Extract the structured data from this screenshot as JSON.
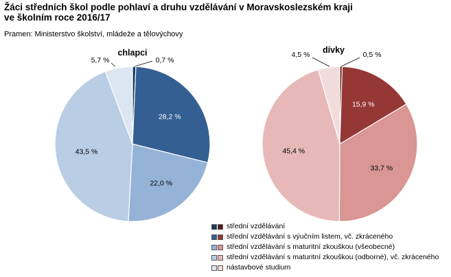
{
  "header": {
    "title_line1": "Žáci středních  škol podle pohlaví a druhu vzdělávání  v Moravskoslezském  kraji",
    "title_line2": "ve školním roce 2016/17",
    "source": "Pramen: Ministerstvo školství, mládeže a tělovýchovy"
  },
  "chart_data": [
    {
      "type": "pie",
      "title": "chlapci",
      "slices": [
        {
          "category": "střední vzdělávání",
          "value": 0.7,
          "label": "0,7 %",
          "color": "#1c3a5e"
        },
        {
          "category": "střední vzdělávání s výučním listem, vč. zkráceného",
          "value": 28.2,
          "label": "28,2 %",
          "color": "#345f93"
        },
        {
          "category": "střední vzdělávání s maturitní zkouškou (všeobecné)",
          "value": 22.0,
          "label": "22,0 %",
          "color": "#95b3d7"
        },
        {
          "category": "střední vzdělávání s maturitní zkouškou (odborné), vč. zkráceného",
          "value": 43.5,
          "label": "43,5 %",
          "color": "#b9cde5"
        },
        {
          "category": "nástavbové studium",
          "value": 5.7,
          "label": "5,7 %",
          "color": "#dce6f2"
        }
      ]
    },
    {
      "type": "pie",
      "title": "dívky",
      "slices": [
        {
          "category": "střední vzdělávání",
          "value": 0.5,
          "label": "0,5 %",
          "color": "#5a1a1a"
        },
        {
          "category": "střední vzdělávání s výučním listem, vč. zkráceného",
          "value": 15.9,
          "label": "15,9 %",
          "color": "#953735"
        },
        {
          "category": "střední vzdělávání s maturitní zkouškou (všeobecné)",
          "value": 33.7,
          "label": "33,7 %",
          "color": "#d99694"
        },
        {
          "category": "střední vzdělávání s maturitní zkouškou (odborné), vč. zkráceného",
          "value": 45.4,
          "label": "45,4 %",
          "color": "#e6b9b8"
        },
        {
          "category": "nástavbové studium",
          "value": 4.5,
          "label": "4,5 %",
          "color": "#f2dcdb"
        }
      ]
    }
  ],
  "legend": {
    "items": [
      {
        "label": "střední vzdělávání",
        "color_a": "#1c3a5e",
        "color_b": "#5a1a1a"
      },
      {
        "label": "střední vzdělávání s výučním listem, vč. zkráceného",
        "color_a": "#345f93",
        "color_b": "#953735"
      },
      {
        "label": "střední vzdělávání s maturitní zkouškou (všeobecné)",
        "color_a": "#95b3d7",
        "color_b": "#d99694"
      },
      {
        "label": "střední vzdělávání s maturitní zkouškou (odborné), vč. zkráceného",
        "color_a": "#b9cde5",
        "color_b": "#e6b9b8"
      },
      {
        "label": "nástavbové studium",
        "color_a": "#dce6f2",
        "color_b": "#f2dcdb"
      }
    ]
  }
}
